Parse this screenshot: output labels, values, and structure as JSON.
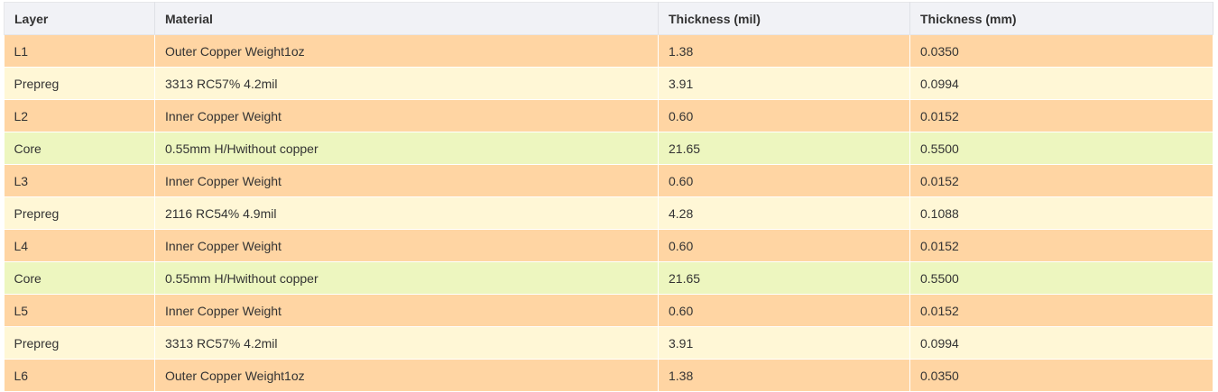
{
  "table": {
    "headers": [
      "Layer",
      "Material",
      "Thickness (mil)",
      "Thickness (mm)"
    ],
    "colors": {
      "copper_row": "#ffd5a3",
      "prepreg_row": "#fff7d6",
      "core_row": "#edf6bf",
      "header_bg": "#f1f2f6"
    },
    "rows": [
      {
        "type": "copper",
        "layer": "L1",
        "material": "Outer Copper Weight1oz",
        "mil": "1.38",
        "mm": "0.0350"
      },
      {
        "type": "prepreg",
        "layer": "Prepreg",
        "material": "3313 RC57% 4.2mil",
        "mil": "3.91",
        "mm": "0.0994"
      },
      {
        "type": "copper",
        "layer": "L2",
        "material": "Inner Copper Weight",
        "mil": "0.60",
        "mm": "0.0152"
      },
      {
        "type": "core",
        "layer": "Core",
        "material": "0.55mm H/Hwithout copper",
        "mil": "21.65",
        "mm": "0.5500"
      },
      {
        "type": "copper",
        "layer": "L3",
        "material": "Inner Copper Weight",
        "mil": "0.60",
        "mm": "0.0152"
      },
      {
        "type": "prepreg",
        "layer": "Prepreg",
        "material": "2116 RC54% 4.9mil",
        "mil": "4.28",
        "mm": "0.1088"
      },
      {
        "type": "copper",
        "layer": "L4",
        "material": "Inner Copper Weight",
        "mil": "0.60",
        "mm": "0.0152"
      },
      {
        "type": "core",
        "layer": "Core",
        "material": "0.55mm H/Hwithout copper",
        "mil": "21.65",
        "mm": "0.5500"
      },
      {
        "type": "copper",
        "layer": "L5",
        "material": "Inner Copper Weight",
        "mil": "0.60",
        "mm": "0.0152"
      },
      {
        "type": "prepreg",
        "layer": "Prepreg",
        "material": "3313 RC57% 4.2mil",
        "mil": "3.91",
        "mm": "0.0994"
      },
      {
        "type": "copper",
        "layer": "L6",
        "material": "Outer Copper Weight1oz",
        "mil": "1.38",
        "mm": "0.0350"
      }
    ]
  }
}
